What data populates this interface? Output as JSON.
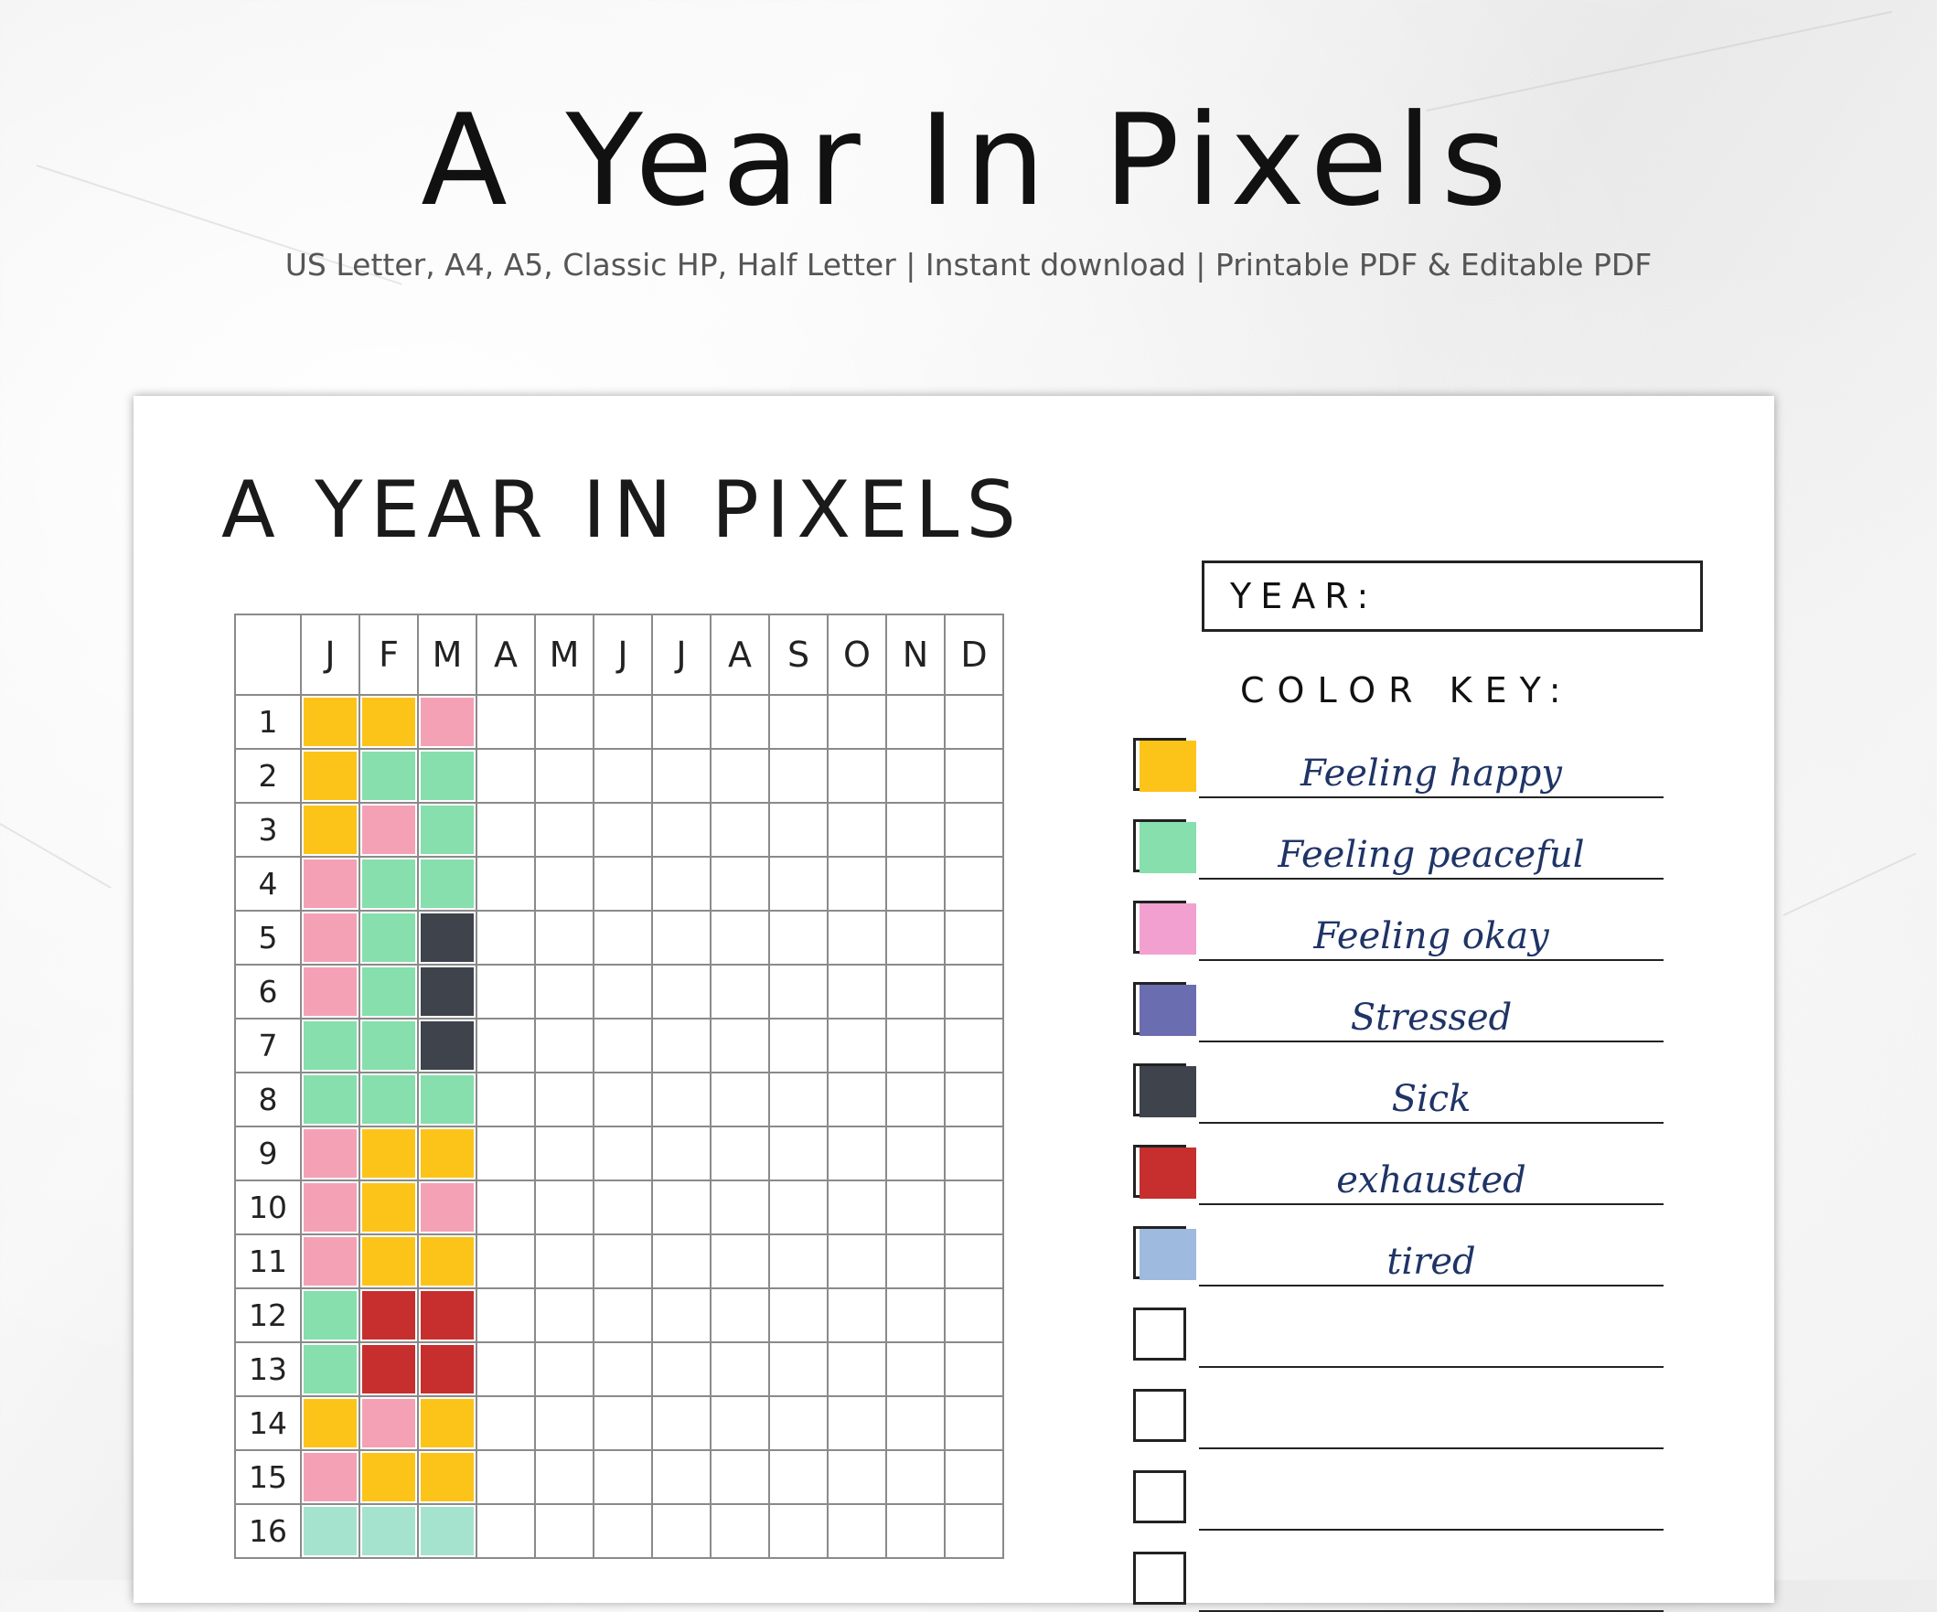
{
  "header": {
    "title": "A Year In Pixels",
    "subtitle": "US Letter, A4, A5,  Classic HP, Half Letter | Instant download | Printable PDF & Editable PDF"
  },
  "sheet": {
    "title": "A YEAR IN PIXELS",
    "year_label": "YEAR:",
    "color_key_title": "COLOR KEY:"
  },
  "colors": {
    "yellow": "#fcc419",
    "green": "#86dfac",
    "pink": "#f4a1b6",
    "dark": "#3e434c",
    "red": "#c62f2d",
    "mint": "#a5e3cf",
    "okay_pink": "#f2a0cf",
    "stressed_purple": "#6a6daf",
    "tired_blue": "#9ebade"
  },
  "grid": {
    "months": [
      "J",
      "F",
      "M",
      "A",
      "M",
      "J",
      "J",
      "A",
      "S",
      "O",
      "N",
      "D"
    ],
    "days": [
      "1",
      "2",
      "3",
      "4",
      "5",
      "6",
      "7",
      "8",
      "9",
      "10",
      "11",
      "12",
      "13",
      "14",
      "15",
      "16"
    ],
    "filled": [
      [
        "yellow",
        "yellow",
        "pink"
      ],
      [
        "yellow",
        "green",
        "green"
      ],
      [
        "yellow",
        "pink",
        "green"
      ],
      [
        "pink",
        "green",
        "green"
      ],
      [
        "pink",
        "green",
        "dark"
      ],
      [
        "pink",
        "green",
        "dark"
      ],
      [
        "green",
        "green",
        "dark"
      ],
      [
        "green",
        "green",
        "green"
      ],
      [
        "pink",
        "yellow",
        "yellow"
      ],
      [
        "pink",
        "yellow",
        "pink"
      ],
      [
        "pink",
        "yellow",
        "yellow"
      ],
      [
        "green",
        "red",
        "red"
      ],
      [
        "green",
        "red",
        "red"
      ],
      [
        "yellow",
        "pink",
        "yellow"
      ],
      [
        "pink",
        "yellow",
        "yellow"
      ],
      [
        "mint",
        "mint",
        "mint"
      ]
    ]
  },
  "color_key": [
    {
      "label": "Feeling happy",
      "color": "#fcc419"
    },
    {
      "label": "Feeling peaceful",
      "color": "#86dfac"
    },
    {
      "label": "Feeling okay",
      "color": "#f2a0cf"
    },
    {
      "label": "Stressed",
      "color": "#6a6daf"
    },
    {
      "label": "Sick",
      "color": "#3e434c"
    },
    {
      "label": "exhausted",
      "color": "#c62f2d"
    },
    {
      "label": "tired",
      "color": "#9ebade"
    },
    {
      "label": "",
      "color": ""
    },
    {
      "label": "",
      "color": ""
    },
    {
      "label": "",
      "color": ""
    },
    {
      "label": "",
      "color": ""
    }
  ]
}
